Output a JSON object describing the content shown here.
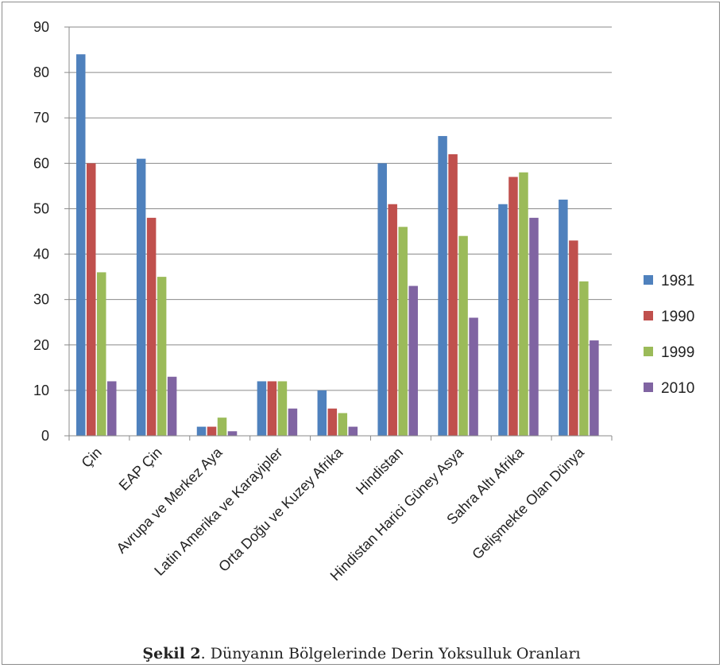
{
  "caption": {
    "label": "Şekil 2",
    "text": ". Dünyanın Bölgelerinde Derin Yoksulluk Oranları"
  },
  "chart_data": {
    "type": "bar",
    "categories": [
      "Çin",
      "EAP Çin",
      "Avrupa ve Merkez Aya",
      "Latin Amerika ve Karayipler",
      "Orta Doğu ve Kuzey Afrika",
      "Hindistan",
      "Hindistan Harici Güney Asya",
      "Sahra Altı Afrika",
      "Gelişmekte Olan Dünya"
    ],
    "series": [
      {
        "name": "1981",
        "color": "#4f81bd",
        "values": [
          84,
          61,
          2,
          12,
          10,
          60,
          66,
          51,
          52
        ]
      },
      {
        "name": "1990",
        "color": "#c0504d",
        "values": [
          60,
          48,
          2,
          12,
          6,
          51,
          62,
          57,
          43
        ]
      },
      {
        "name": "1999",
        "color": "#9bbb59",
        "values": [
          36,
          35,
          4,
          12,
          5,
          46,
          44,
          58,
          34
        ]
      },
      {
        "name": "2010",
        "color": "#8064a2",
        "values": [
          12,
          13,
          1,
          6,
          2,
          33,
          26,
          48,
          21
        ]
      }
    ],
    "ylim": [
      0,
      90
    ],
    "yticks": [
      0,
      10,
      20,
      30,
      40,
      50,
      60,
      70,
      80,
      90
    ],
    "grid": true,
    "legend": "right",
    "title": "",
    "xlabel": "",
    "ylabel": ""
  }
}
